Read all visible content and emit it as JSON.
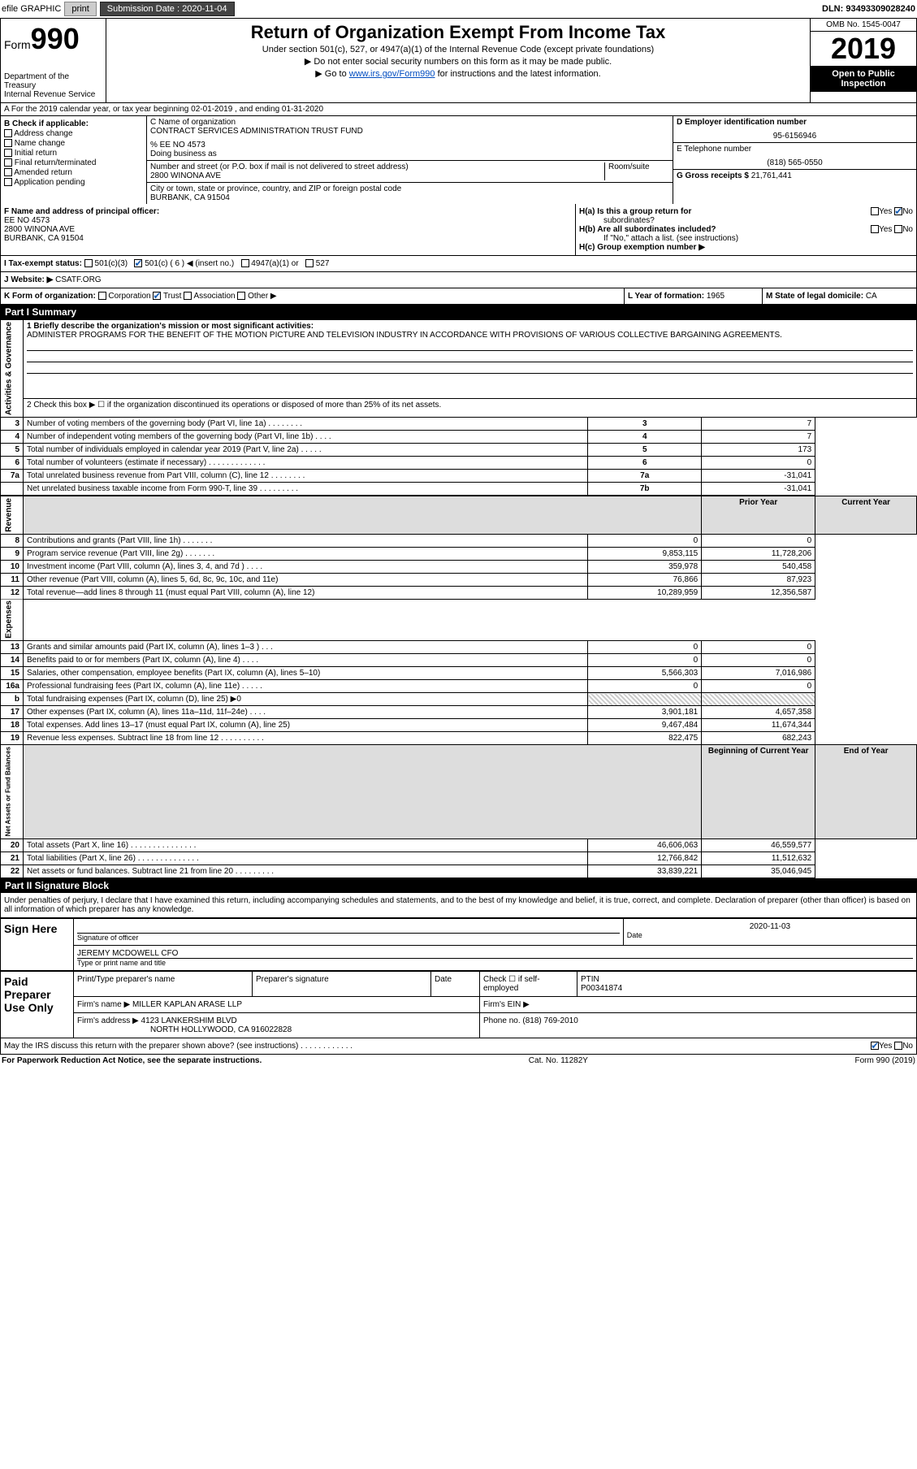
{
  "header_bar": {
    "efile": "efile GRAPHIC",
    "print": "print",
    "submission_label": "Submission Date :",
    "submission_date": "2020-11-04",
    "dln_label": "DLN:",
    "dln": "93493309028240"
  },
  "form_header": {
    "form_label": "Form",
    "form_number": "990",
    "dept": "Department of the Treasury",
    "irs": "Internal Revenue Service",
    "title": "Return of Organization Exempt From Income Tax",
    "sub1": "Under section 501(c), 527, or 4947(a)(1) of the Internal Revenue Code (except private foundations)",
    "sub2": "▶ Do not enter social security numbers on this form as it may be made public.",
    "sub3_pre": "▶ Go to ",
    "sub3_link": "www.irs.gov/Form990",
    "sub3_post": " for instructions and the latest information.",
    "omb": "OMB No. 1545-0047",
    "year": "2019",
    "open": "Open to Public Inspection"
  },
  "row_a": "A For the 2019 calendar year, or tax year beginning 02-01-2019   , and ending 01-31-2020",
  "section_b": {
    "label": "B Check if applicable:",
    "opts": [
      "Address change",
      "Name change",
      "Initial return",
      "Final return/terminated",
      "Amended return",
      "Application pending"
    ]
  },
  "section_c": {
    "name_label": "C Name of organization",
    "name": "CONTRACT SERVICES ADMINISTRATION TRUST FUND",
    "ee": "% EE NO 4573",
    "dba_label": "Doing business as",
    "addr_label": "Number and street (or P.O. box if mail is not delivered to street address)",
    "room_label": "Room/suite",
    "addr": "2800 WINONA AVE",
    "city_label": "City or town, state or province, country, and ZIP or foreign postal code",
    "city": "BURBANK, CA  91504"
  },
  "section_d": {
    "ein_label": "D Employer identification number",
    "ein": "95-6156946",
    "tel_label": "E Telephone number",
    "tel": "(818) 565-0550",
    "gross_label": "G Gross receipts $",
    "gross": "21,761,441"
  },
  "section_f": {
    "label": "F  Name and address of principal officer:",
    "name": "EE NO 4573",
    "addr1": "2800 WINONA AVE",
    "addr2": "BURBANK, CA  91504"
  },
  "section_h": {
    "ha_label": "H(a)  Is this a group return for",
    "ha_sub": "subordinates?",
    "hb_label": "H(b)  Are all subordinates included?",
    "hb_note": "If \"No,\" attach a list. (see instructions)",
    "hc_label": "H(c)  Group exemption number ▶",
    "yes": "Yes",
    "no": "No"
  },
  "tax_status": {
    "label": "I   Tax-exempt status:",
    "opts": [
      "501(c)(3)",
      "501(c) ( 6 ) ◀ (insert no.)",
      "4947(a)(1) or",
      "527"
    ]
  },
  "website": {
    "label": "J   Website: ▶",
    "value": "CSATF.ORG"
  },
  "klm": {
    "k_label": "K Form of organization:",
    "k_opts": [
      "Corporation",
      "Trust",
      "Association",
      "Other ▶"
    ],
    "l_label": "L Year of formation:",
    "l_val": "1965",
    "m_label": "M State of legal domicile:",
    "m_val": "CA"
  },
  "part1": {
    "title": "Part I     Summary",
    "line1_label": "1  Briefly describe the organization's mission or most significant activities:",
    "line1_text": "ADMINISTER PROGRAMS FOR THE BENEFIT OF THE MOTION PICTURE AND TELEVISION INDUSTRY IN ACCORDANCE WITH PROVISIONS OF VARIOUS COLLECTIVE BARGAINING AGREEMENTS.",
    "line2": "2   Check this box ▶ ☐  if the organization discontinued its operations or disposed of more than 25% of its net assets.",
    "governance_label": "Activities & Governance",
    "revenue_label": "Revenue",
    "expenses_label": "Expenses",
    "netassets_label": "Net Assets or Fund Balances",
    "prior_year": "Prior Year",
    "current_year": "Current Year",
    "begin_year": "Beginning of Current Year",
    "end_year": "End of Year",
    "rows_gov": [
      {
        "num": "3",
        "desc": "Number of voting members of the governing body (Part VI, line 1a)  .  .  .  .  .  .  .  .",
        "box": "3",
        "val": "7"
      },
      {
        "num": "4",
        "desc": "Number of independent voting members of the governing body (Part VI, line 1b)  .  .  .  .",
        "box": "4",
        "val": "7"
      },
      {
        "num": "5",
        "desc": "Total number of individuals employed in calendar year 2019 (Part V, line 2a)  .  .  .  .  .",
        "box": "5",
        "val": "173"
      },
      {
        "num": "6",
        "desc": "Total number of volunteers (estimate if necessary)   .  .  .  .  .  .  .  .  .  .  .  .  .",
        "box": "6",
        "val": "0"
      },
      {
        "num": "7a",
        "desc": "Total unrelated business revenue from Part VIII, column (C), line 12  .  .  .  .  .  .  .  .",
        "box": "7a",
        "val": "-31,041"
      },
      {
        "num": "",
        "desc": "Net unrelated business taxable income from Form 990-T, line 39   .  .  .  .  .  .  .  .  .",
        "box": "7b",
        "val": "-31,041"
      }
    ],
    "rows_rev": [
      {
        "num": "8",
        "desc": "Contributions and grants (Part VIII, line 1h)  .  .  .  .  .  .  .",
        "prior": "0",
        "curr": "0"
      },
      {
        "num": "9",
        "desc": "Program service revenue (Part VIII, line 2g)   .  .  .  .  .  .  .",
        "prior": "9,853,115",
        "curr": "11,728,206"
      },
      {
        "num": "10",
        "desc": "Investment income (Part VIII, column (A), lines 3, 4, and 7d )  .  .  .  .",
        "prior": "359,978",
        "curr": "540,458"
      },
      {
        "num": "11",
        "desc": "Other revenue (Part VIII, column (A), lines 5, 6d, 8c, 9c, 10c, and 11e)",
        "prior": "76,866",
        "curr": "87,923"
      },
      {
        "num": "12",
        "desc": "Total revenue—add lines 8 through 11 (must equal Part VIII, column (A), line 12)",
        "prior": "10,289,959",
        "curr": "12,356,587"
      }
    ],
    "rows_exp": [
      {
        "num": "13",
        "desc": "Grants and similar amounts paid (Part IX, column (A), lines 1–3 )  .  .  .",
        "prior": "0",
        "curr": "0"
      },
      {
        "num": "14",
        "desc": "Benefits paid to or for members (Part IX, column (A), line 4)  .  .  .  .",
        "prior": "0",
        "curr": "0"
      },
      {
        "num": "15",
        "desc": "Salaries, other compensation, employee benefits (Part IX, column (A), lines 5–10)",
        "prior": "5,566,303",
        "curr": "7,016,986"
      },
      {
        "num": "16a",
        "desc": "Professional fundraising fees (Part IX, column (A), line 11e)  .  .  .  .  .",
        "prior": "0",
        "curr": "0"
      },
      {
        "num": "b",
        "desc": "Total fundraising expenses (Part IX, column (D), line 25) ▶0",
        "prior": "",
        "curr": "",
        "hatched": true
      },
      {
        "num": "17",
        "desc": "Other expenses (Part IX, column (A), lines 11a–11d, 11f–24e)  .  .  .  .",
        "prior": "3,901,181",
        "curr": "4,657,358"
      },
      {
        "num": "18",
        "desc": "Total expenses. Add lines 13–17 (must equal Part IX, column (A), line 25)",
        "prior": "9,467,484",
        "curr": "11,674,344"
      },
      {
        "num": "19",
        "desc": "Revenue less expenses. Subtract line 18 from line 12  .  .  .  .  .  .  .  .  .  .",
        "prior": "822,475",
        "curr": "682,243"
      }
    ],
    "rows_net": [
      {
        "num": "20",
        "desc": "Total assets (Part X, line 16)  .  .  .  .  .  .  .  .  .  .  .  .  .  .  .",
        "prior": "46,606,063",
        "curr": "46,559,577"
      },
      {
        "num": "21",
        "desc": "Total liabilities (Part X, line 26)  .  .  .  .  .  .  .  .  .  .  .  .  .  .",
        "prior": "12,766,842",
        "curr": "11,512,632"
      },
      {
        "num": "22",
        "desc": "Net assets or fund balances. Subtract line 21 from line 20  .  .  .  .  .  .  .  .  .",
        "prior": "33,839,221",
        "curr": "35,046,945"
      }
    ]
  },
  "part2": {
    "title": "Part II    Signature Block",
    "declaration": "Under penalties of perjury, I declare that I have examined this return, including accompanying schedules and statements, and to the best of my knowledge and belief, it is true, correct, and complete. Declaration of preparer (other than officer) is based on all information of which preparer has any knowledge.",
    "sign_here": "Sign Here",
    "sig_label": "Signature of officer",
    "date_label": "Date",
    "sig_date": "2020-11-03",
    "officer": "JEREMY MCDOWELL  CFO",
    "officer_label": "Type or print name and title",
    "paid": "Paid Preparer Use Only",
    "prep_name_label": "Print/Type preparer's name",
    "prep_sig_label": "Preparer's signature",
    "prep_date_label": "Date",
    "check_self": "Check ☐ if self-employed",
    "ptin_label": "PTIN",
    "ptin": "P00341874",
    "firm_name_label": "Firm's name     ▶",
    "firm_name": "MILLER KAPLAN ARASE LLP",
    "firm_ein_label": "Firm's EIN ▶",
    "firm_addr_label": "Firm's address ▶",
    "firm_addr1": "4123 LANKERSHIM BLVD",
    "firm_addr2": "NORTH HOLLYWOOD, CA  916022828",
    "phone_label": "Phone no.",
    "phone": "(818) 769-2010",
    "discuss": "May the IRS discuss this return with the preparer shown above? (see instructions)   .  .  .  .  .  .  .  .  .  .  .  .",
    "paperwork": "For Paperwork Reduction Act Notice, see the separate instructions.",
    "cat": "Cat. No. 11282Y",
    "form_foot": "Form 990 (2019)"
  }
}
